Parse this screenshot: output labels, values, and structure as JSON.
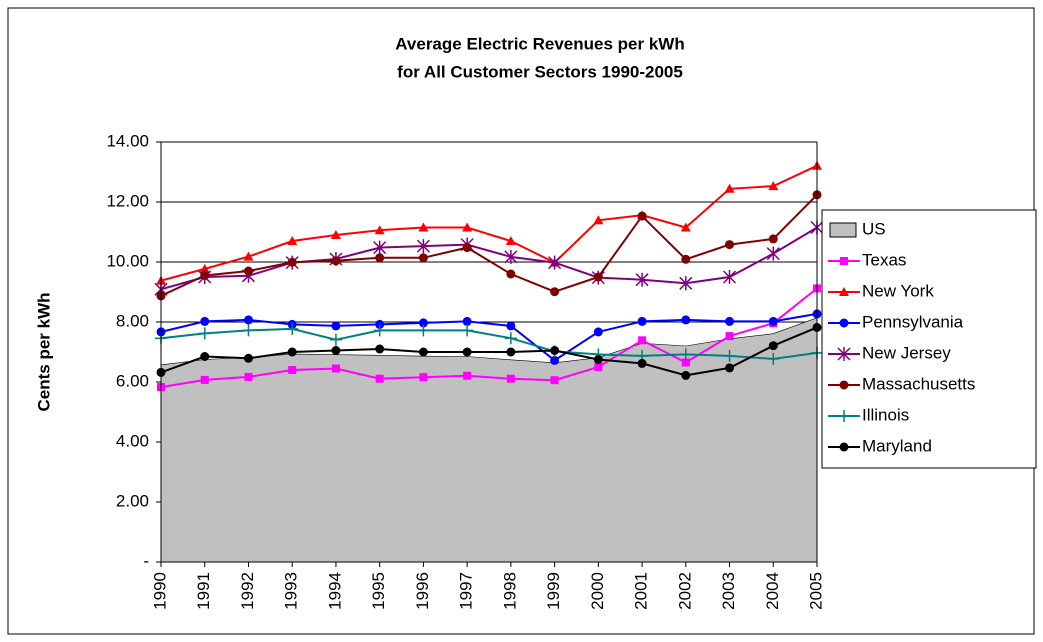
{
  "chart_data": {
    "type": "line",
    "title": [
      "Average Electric Revenues per kWh",
      "for All Customer Sectors 1990-2005"
    ],
    "y_label": "Cents per kWh",
    "categories": [
      "1990",
      "1991",
      "1992",
      "1993",
      "1994",
      "1995",
      "1996",
      "1997",
      "1998",
      "1999",
      "2000",
      "2001",
      "2002",
      "2003",
      "2004",
      "2005"
    ],
    "ylim": [
      0,
      14
    ],
    "yticks": [
      {
        "value": 0,
        "label": "-"
      },
      {
        "value": 2,
        "label": "2.00"
      },
      {
        "value": 4,
        "label": "4.00"
      },
      {
        "value": 6,
        "label": "6.00"
      },
      {
        "value": 8,
        "label": "8.00"
      },
      {
        "value": 10,
        "label": "10.00"
      },
      {
        "value": 12,
        "label": "12.00"
      },
      {
        "value": 14,
        "label": "14.00"
      }
    ],
    "grid": true,
    "legend": "right",
    "series": [
      {
        "name": "US",
        "kind": "area",
        "color": "#c0c0c0",
        "values": [
          6.57,
          6.75,
          6.82,
          6.93,
          6.91,
          6.89,
          6.86,
          6.85,
          6.74,
          6.64,
          6.81,
          7.29,
          7.2,
          7.44,
          7.61,
          8.14
        ]
      },
      {
        "name": "Texas",
        "marker": "square",
        "color": "#ff00ff",
        "values": [
          5.83,
          6.07,
          6.17,
          6.4,
          6.45,
          6.11,
          6.16,
          6.21,
          6.11,
          6.06,
          6.5,
          7.39,
          6.65,
          7.53,
          7.96,
          9.12
        ]
      },
      {
        "name": "New York",
        "marker": "triangle",
        "color": "#ff0000",
        "values": [
          9.38,
          9.77,
          10.18,
          10.7,
          10.9,
          11.06,
          11.15,
          11.15,
          10.7,
          9.98,
          11.39,
          11.56,
          11.15,
          12.44,
          12.53,
          13.21
        ]
      },
      {
        "name": "Pennsylvania",
        "marker": "circle",
        "color": "#0000ff",
        "values": [
          7.67,
          8.02,
          8.07,
          7.92,
          7.87,
          7.92,
          7.97,
          8.02,
          7.87,
          6.72,
          7.67,
          8.02,
          8.07,
          8.02,
          8.02,
          8.27
        ]
      },
      {
        "name": "New Jersey",
        "marker": "star",
        "color": "#800080",
        "values": [
          9.09,
          9.5,
          9.54,
          9.98,
          10.1,
          10.48,
          10.53,
          10.58,
          10.17,
          9.98,
          9.48,
          9.41,
          9.29,
          9.5,
          10.28,
          11.15
        ]
      },
      {
        "name": "Massachusetts",
        "marker": "circle",
        "color": "#800000",
        "values": [
          8.87,
          9.55,
          9.7,
          9.99,
          10.04,
          10.14,
          10.14,
          10.48,
          9.6,
          9.01,
          9.5,
          11.53,
          10.09,
          10.58,
          10.77,
          12.24
        ]
      },
      {
        "name": "Illinois",
        "marker": "plus",
        "color": "#008080",
        "values": [
          7.46,
          7.62,
          7.72,
          7.77,
          7.41,
          7.72,
          7.72,
          7.72,
          7.46,
          7.02,
          6.92,
          6.87,
          6.92,
          6.87,
          6.77,
          6.97
        ]
      },
      {
        "name": "Maryland",
        "marker": "circle",
        "color": "#000000",
        "values": [
          6.32,
          6.85,
          6.79,
          7.0,
          7.05,
          7.1,
          7.0,
          7.0,
          7.0,
          7.05,
          6.75,
          6.62,
          6.22,
          6.47,
          7.21,
          7.82
        ]
      }
    ]
  }
}
